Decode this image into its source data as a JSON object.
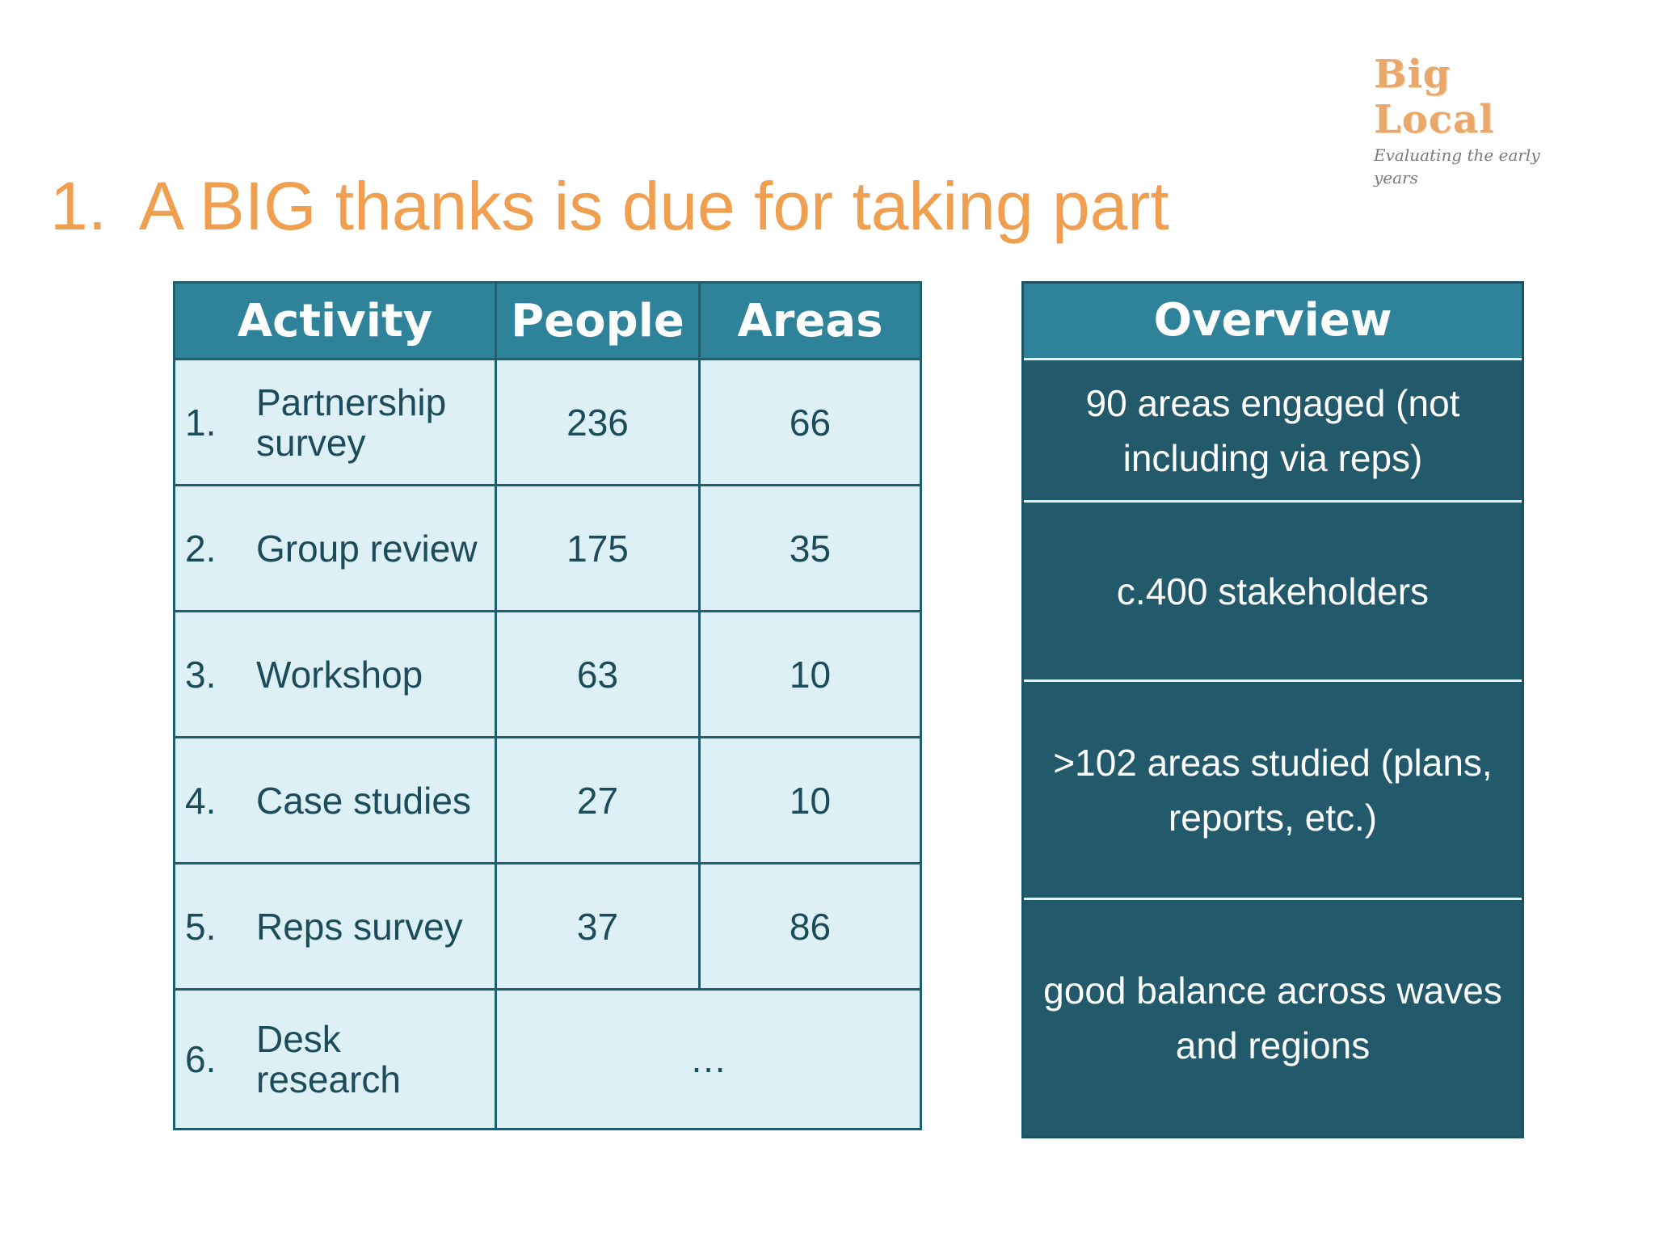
{
  "logo": {
    "title": "Big Local",
    "subtitle": "Evaluating the early years"
  },
  "title": {
    "number": "1.",
    "text": "A BIG thanks is due for taking part"
  },
  "activity_table": {
    "headers": [
      "Activity",
      "People",
      "Areas"
    ],
    "rows": [
      {
        "no": "1.",
        "activity": "Partnership survey",
        "people": "236",
        "areas": "66"
      },
      {
        "no": "2.",
        "activity": "Group review",
        "people": "175",
        "areas": "35"
      },
      {
        "no": "3.",
        "activity": "Workshop",
        "people": "63",
        "areas": "10"
      },
      {
        "no": "4.",
        "activity": "Case studies",
        "people": "27",
        "areas": "10"
      },
      {
        "no": "5.",
        "activity": "Reps survey",
        "people": "37",
        "areas": "86"
      },
      {
        "no": "6.",
        "activity": "Desk research",
        "merged": "…"
      }
    ]
  },
  "overview": {
    "header": "Overview",
    "items": [
      "90 areas engaged (not including via reps)",
      "c.400 stakeholders",
      ">102 areas studied (plans, reports, etc.)",
      "good balance across waves and regions"
    ]
  },
  "colors": {
    "title_orange": "#ef9f4f",
    "header_teal": "#2e8299",
    "dark_teal": "#225a6b",
    "light_cell": "#ddf0f5"
  }
}
